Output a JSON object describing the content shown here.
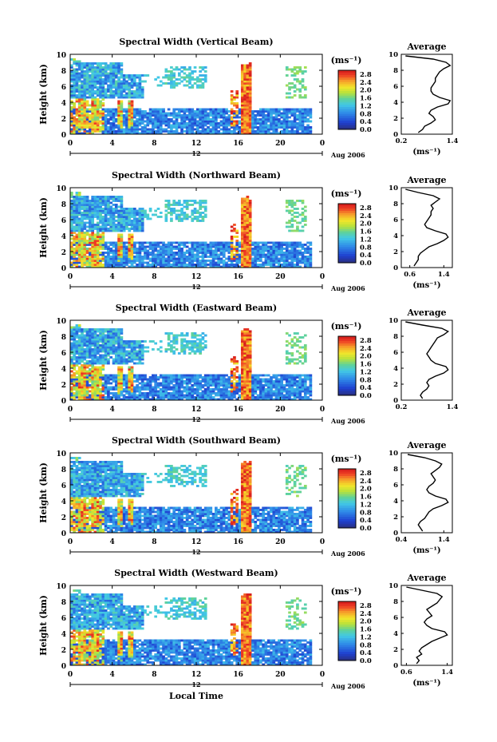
{
  "figure": {
    "height_label": "Height (km)",
    "unit_label": "(ms⁻¹)",
    "date_label": "Aug 2006",
    "date_axis_tick": "12",
    "xlabel": "Local Time",
    "average_title": "Average",
    "average_unit": "(ms⁻¹)"
  },
  "chart_data": [
    {
      "type": "heatmap",
      "title": "Spectral Width (Vertical Beam)",
      "xlabel": "",
      "ylabel": "Height (km)",
      "xlim": [
        0,
        24
      ],
      "ylim": [
        0,
        10
      ],
      "x_ticks": [
        "0",
        "4",
        "8",
        "12",
        "16",
        "20",
        "0"
      ],
      "y_ticks": [
        "0",
        "2",
        "4",
        "6",
        "8",
        "10"
      ],
      "colorbar": {
        "label": "(ms⁻¹)",
        "range": [
          0,
          3.0
        ],
        "ticks": [
          "0.0",
          "0.4",
          "0.8",
          "1.2",
          "1.6",
          "2.0",
          "2.4",
          "2.8"
        ]
      },
      "profile": {
        "title": "Average",
        "xlabel": "(ms⁻¹)",
        "x_ticks": [
          "0.2",
          "1.4"
        ],
        "xlim": [
          0.2,
          1.4
        ],
        "heights": [
          0.2,
          0.6,
          1.0,
          1.4,
          1.8,
          2.2,
          2.6,
          3.0,
          3.4,
          3.8,
          4.2,
          4.6,
          5.0,
          5.4,
          5.8,
          6.2,
          6.6,
          7.0,
          7.4,
          7.8,
          8.2,
          8.6,
          9.0,
          9.4,
          9.8
        ],
        "values": [
          0.6,
          0.7,
          0.75,
          0.9,
          1.0,
          0.95,
          0.85,
          0.9,
          1.05,
          1.3,
          1.35,
          1.1,
          0.95,
          0.9,
          0.9,
          0.95,
          1.0,
          1.0,
          1.05,
          1.1,
          1.2,
          1.35,
          1.25,
          0.95,
          0.3
        ]
      }
    },
    {
      "type": "heatmap",
      "title": "Spectral Width (Northward Beam)",
      "xlabel": "",
      "ylabel": "Height (km)",
      "xlim": [
        0,
        24
      ],
      "ylim": [
        0,
        10
      ],
      "x_ticks": [
        "0",
        "4",
        "8",
        "12",
        "16",
        "20",
        "0"
      ],
      "y_ticks": [
        "0",
        "2",
        "4",
        "6",
        "8",
        "10"
      ],
      "colorbar": {
        "label": "(ms⁻¹)",
        "range": [
          0,
          3.0
        ],
        "ticks": [
          "0.0",
          "0.4",
          "0.8",
          "1.2",
          "1.6",
          "2.0",
          "2.4",
          "2.8"
        ]
      },
      "profile": {
        "title": "Average",
        "xlabel": "(ms⁻¹)",
        "x_ticks": [
          "0.6",
          "1.4"
        ],
        "xlim": [
          0.4,
          1.6
        ],
        "heights": [
          0.2,
          0.6,
          1.0,
          1.4,
          1.8,
          2.2,
          2.6,
          3.0,
          3.4,
          3.8,
          4.2,
          4.6,
          5.0,
          5.4,
          5.8,
          6.2,
          6.6,
          7.0,
          7.4,
          7.8,
          8.2,
          8.6,
          9.0,
          9.4,
          9.8
        ],
        "values": [
          0.7,
          0.75,
          0.8,
          0.8,
          0.85,
          0.95,
          1.05,
          1.25,
          1.4,
          1.5,
          1.45,
          1.2,
          1.0,
          0.95,
          1.0,
          1.05,
          1.1,
          1.1,
          1.15,
          1.1,
          1.2,
          1.3,
          1.15,
          0.8,
          0.5
        ]
      }
    },
    {
      "type": "heatmap",
      "title": "Spectral Width (Eastward Beam)",
      "xlabel": "",
      "ylabel": "Height (km)",
      "xlim": [
        0,
        24
      ],
      "ylim": [
        0,
        10
      ],
      "x_ticks": [
        "0",
        "4",
        "8",
        "12",
        "16",
        "20",
        "0"
      ],
      "y_ticks": [
        "0",
        "2",
        "4",
        "6",
        "8",
        "10"
      ],
      "colorbar": {
        "label": "(ms⁻¹)",
        "range": [
          0,
          3.0
        ],
        "ticks": [
          "0.0",
          "0.4",
          "0.8",
          "1.2",
          "1.6",
          "2.0",
          "2.4",
          "2.8"
        ]
      },
      "profile": {
        "title": "Average",
        "xlabel": "",
        "x_ticks": [
          "0.2",
          "1.4"
        ],
        "xlim": [
          0.2,
          1.4
        ],
        "heights": [
          0.2,
          0.6,
          1.0,
          1.4,
          1.8,
          2.2,
          2.6,
          3.0,
          3.4,
          3.8,
          4.2,
          4.6,
          5.0,
          5.4,
          5.8,
          6.2,
          6.6,
          7.0,
          7.4,
          7.8,
          8.2,
          8.6,
          9.0,
          9.4,
          9.8
        ],
        "values": [
          0.7,
          0.65,
          0.7,
          0.8,
          0.85,
          0.8,
          0.85,
          1.0,
          1.2,
          1.3,
          1.25,
          1.0,
          0.9,
          0.85,
          0.8,
          0.85,
          0.9,
          0.95,
          1.0,
          1.05,
          1.2,
          1.3,
          1.15,
          0.7,
          0.3
        ]
      }
    },
    {
      "type": "heatmap",
      "title": "Spectral Width (Southward Beam)",
      "xlabel": "",
      "ylabel": "Height (km)",
      "xlim": [
        0,
        24
      ],
      "ylim": [
        0,
        10
      ],
      "x_ticks": [
        "0",
        "4",
        "8",
        "12",
        "16",
        "20",
        "0"
      ],
      "y_ticks": [
        "0",
        "2",
        "4",
        "6",
        "8",
        "10"
      ],
      "colorbar": {
        "label": "(ms⁻¹)",
        "range": [
          0,
          3.0
        ],
        "ticks": [
          "0.0",
          "0.4",
          "0.8",
          "1.2",
          "1.6",
          "2.0",
          "2.4",
          "2.8"
        ]
      },
      "profile": {
        "title": "Average",
        "xlabel": "(ms⁻¹)",
        "x_ticks": [
          "0.4",
          "1.4"
        ],
        "xlim": [
          0.4,
          1.6
        ],
        "heights": [
          0.2,
          0.6,
          1.0,
          1.4,
          1.8,
          2.2,
          2.6,
          3.0,
          3.4,
          3.8,
          4.2,
          4.6,
          5.0,
          5.4,
          5.8,
          6.2,
          6.6,
          7.0,
          7.4,
          7.8,
          8.2,
          8.6,
          9.0,
          9.4,
          9.8
        ],
        "values": [
          0.9,
          0.85,
          0.8,
          0.85,
          0.95,
          1.0,
          1.05,
          1.15,
          1.35,
          1.5,
          1.45,
          1.2,
          1.05,
          1.0,
          1.05,
          1.15,
          1.2,
          1.15,
          1.1,
          1.2,
          1.3,
          1.35,
          1.2,
          0.95,
          0.55
        ]
      }
    },
    {
      "type": "heatmap",
      "title": "Spectral Width (Westward Beam)",
      "xlabel": "Local Time",
      "ylabel": "Height (km)",
      "xlim": [
        0,
        24
      ],
      "ylim": [
        0,
        10
      ],
      "x_ticks": [
        "0",
        "4",
        "8",
        "12",
        "16",
        "20",
        "0"
      ],
      "y_ticks": [
        "0",
        "2",
        "4",
        "6",
        "8",
        "10"
      ],
      "colorbar": {
        "label": "(ms⁻¹)",
        "range": [
          0,
          3.0
        ],
        "ticks": [
          "0.0",
          "0.4",
          "0.8",
          "1.2",
          "1.6",
          "2.0",
          "2.4",
          "2.8"
        ]
      },
      "profile": {
        "title": "Average",
        "xlabel": "(ms⁻¹)",
        "x_ticks": [
          "0.6",
          "1.4"
        ],
        "xlim": [
          0.5,
          1.5
        ],
        "heights": [
          0.2,
          0.6,
          1.0,
          1.4,
          1.8,
          2.2,
          2.6,
          3.0,
          3.4,
          3.8,
          4.2,
          4.6,
          5.0,
          5.4,
          5.8,
          6.2,
          6.6,
          7.0,
          7.4,
          7.8,
          8.2,
          8.6,
          9.0,
          9.4,
          9.8
        ],
        "values": [
          0.8,
          0.85,
          0.8,
          0.9,
          0.85,
          0.9,
          1.0,
          1.1,
          1.25,
          1.4,
          1.35,
          1.1,
          1.0,
          0.95,
          1.0,
          1.1,
          1.05,
          1.0,
          1.1,
          1.2,
          1.25,
          1.3,
          1.2,
          0.9,
          0.6
        ]
      }
    }
  ]
}
